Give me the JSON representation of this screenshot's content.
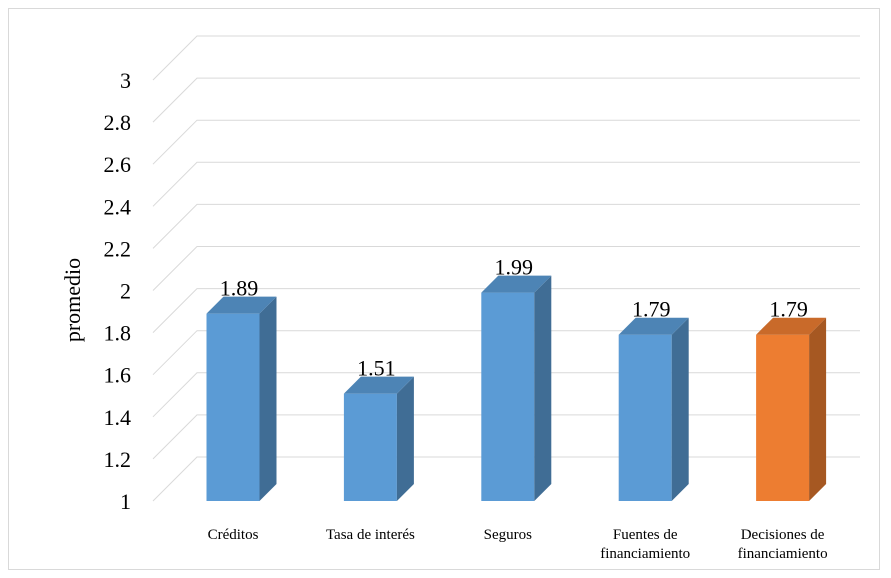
{
  "chart_data": {
    "type": "bar",
    "categories": [
      [
        "Créditos"
      ],
      [
        "Tasa de interés"
      ],
      [
        "Seguros"
      ],
      [
        "Fuentes de",
        "financiamiento"
      ],
      [
        "Decisiones de",
        "financiamiento"
      ]
    ],
    "values": [
      1.89,
      1.51,
      1.99,
      1.79,
      1.79
    ],
    "value_labels": [
      "1.89",
      "1.51",
      "1.99",
      "1.79",
      "1.79"
    ],
    "bar_colors": [
      "#5b9bd5",
      "#5b9bd5",
      "#5b9bd5",
      "#5b9bd5",
      "#ed7d31"
    ],
    "title": "",
    "xlabel": "",
    "ylabel": "promedio",
    "ylim": [
      1,
      3
    ],
    "yticks": [
      "1",
      "1.2",
      "1.4",
      "1.6",
      "1.8",
      "2",
      "2.2",
      "2.4",
      "2.6",
      "2.8",
      "3"
    ],
    "grid": true,
    "style": "3d-column"
  }
}
